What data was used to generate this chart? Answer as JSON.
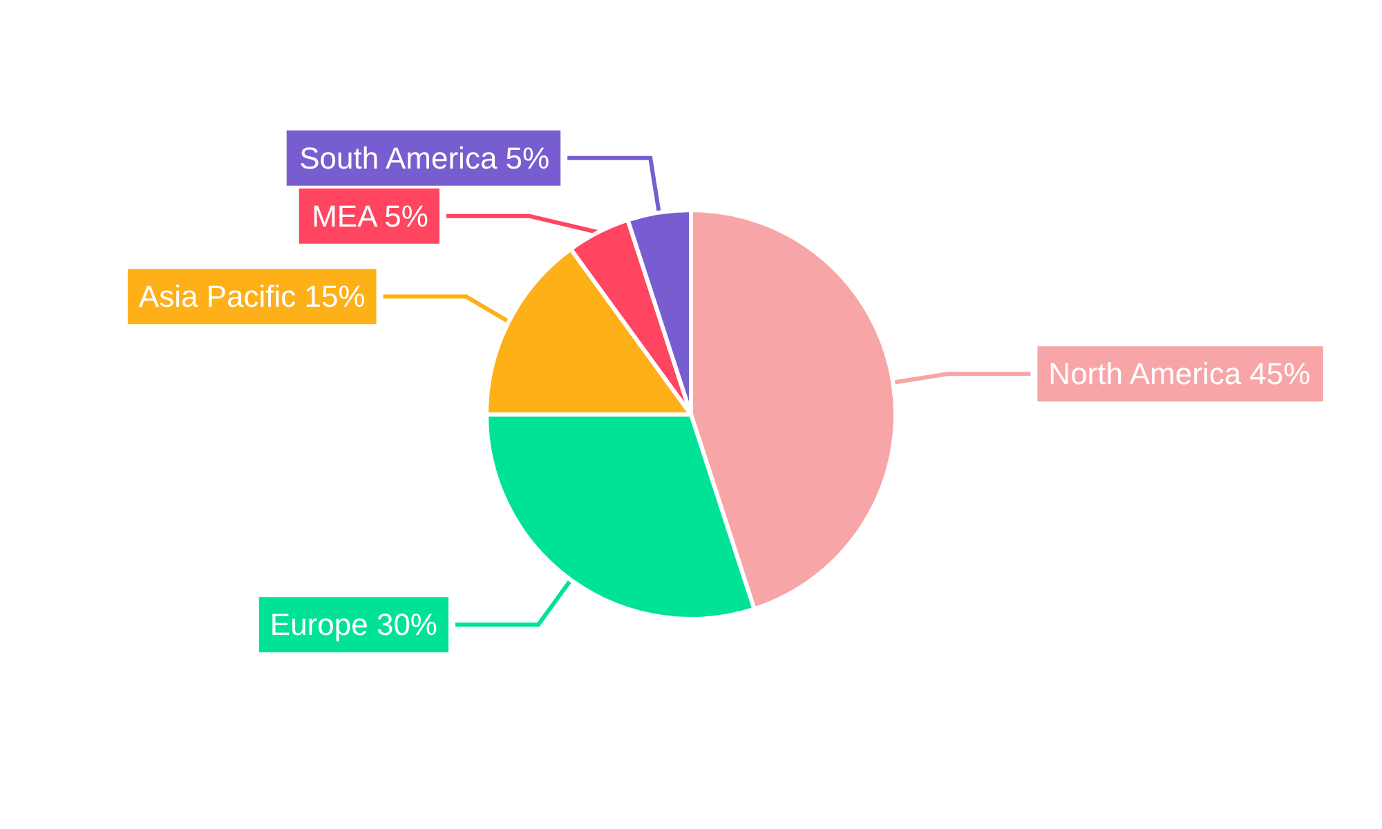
{
  "chart_data": {
    "type": "pie",
    "categories": [
      "North America",
      "Europe",
      "Asia Pacific",
      "MEA",
      "South America"
    ],
    "values": [
      45,
      30,
      15,
      5,
      5
    ],
    "colors": [
      "#f8a5a8",
      "#00e396",
      "#feb019",
      "#ff4560",
      "#775dd0"
    ],
    "value_labels": [
      "45%",
      "30%",
      "15%",
      "5%",
      "5%"
    ]
  }
}
